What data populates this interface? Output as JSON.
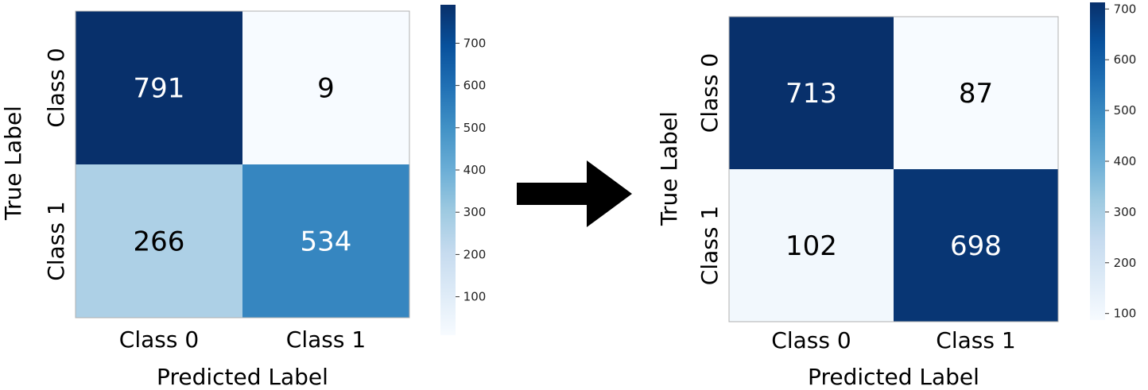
{
  "chart_data": [
    {
      "type": "heatmap",
      "x_categories": [
        "Class 0",
        "Class 1"
      ],
      "y_categories": [
        "Class 0",
        "Class 1"
      ],
      "values": [
        [
          791,
          9
        ],
        [
          266,
          534
        ]
      ],
      "xlabel": "Predicted Label",
      "ylabel": "True Label",
      "colormap": "Blues",
      "colorbar_range": [
        9,
        791
      ],
      "colorbar_ticks": [
        100,
        200,
        300,
        400,
        500,
        600,
        700
      ]
    },
    {
      "type": "heatmap",
      "x_categories": [
        "Class 0",
        "Class 1"
      ],
      "y_categories": [
        "Class 0",
        "Class 1"
      ],
      "values": [
        [
          713,
          87
        ],
        [
          102,
          698
        ]
      ],
      "xlabel": "Predicted Label",
      "ylabel": "True Label",
      "colormap": "Blues",
      "colorbar_range": [
        87,
        713
      ],
      "colorbar_ticks": [
        100,
        200,
        300,
        400,
        500,
        600,
        700
      ]
    }
  ],
  "colors": {
    "low": "#f2f7fd",
    "high": "#08306b",
    "arrow": "#000000",
    "text_dark": "#000000",
    "text_light": "#ffffff"
  },
  "arrow_icon": "right-arrow-icon"
}
